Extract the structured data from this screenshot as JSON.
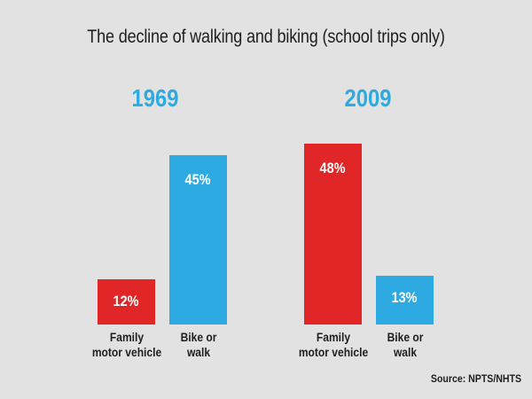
{
  "chart_data": {
    "type": "bar",
    "title": "The decline of walking and biking (school trips only)",
    "source": "Source: NPTS/NHTS",
    "panels": [
      {
        "year": "1969",
        "categories": [
          "Family\nmotor vehicle",
          "Bike or\nwalk"
        ],
        "values": [
          12,
          45
        ],
        "labels": [
          "12%",
          "45%"
        ]
      },
      {
        "year": "2009",
        "categories": [
          "Family\nmotor vehicle",
          "Bike or\nwalk"
        ],
        "values": [
          48,
          13
        ],
        "labels": [
          "48%",
          "13%"
        ]
      }
    ],
    "ylim": [
      0,
      48
    ],
    "colors": {
      "motor_vehicle": "#e02626",
      "bike_walk": "#2daae1",
      "year": "#2daae1"
    }
  }
}
